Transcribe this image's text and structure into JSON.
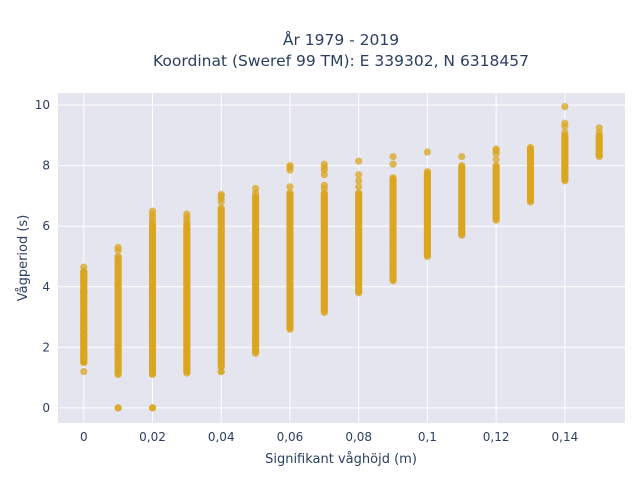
{
  "chart_data": {
    "type": "scatter",
    "title": [
      "År 1979 - 2019",
      "Koordinat (Sweref 99 TM): E 339302, N 6318457"
    ],
    "xlabel": "Signifikant våghöjd (m)",
    "ylabel": "Vågperiod (s)",
    "xlim": [
      -0.0075,
      0.1575
    ],
    "ylim": [
      -0.5,
      10.4
    ],
    "xticks": [
      0,
      0.02,
      0.04,
      0.06,
      0.08,
      0.1,
      0.12,
      0.14
    ],
    "xtick_labels": [
      "0",
      "0,02",
      "0,04",
      "0,06",
      "0,08",
      "0,1",
      "0,12",
      "0,14"
    ],
    "yticks": [
      0,
      2,
      4,
      6,
      8,
      10
    ],
    "ytick_labels": [
      "0",
      "2",
      "4",
      "6",
      "8",
      "10"
    ],
    "grid": true,
    "background_color": "#e5e5ef",
    "marker_color": "#d9a520",
    "columns": [
      {
        "x": 0,
        "range": [
          1.5,
          4.5
        ],
        "outliers": [
          1.2,
          1.5,
          1.6,
          1.8,
          2.1,
          2.4,
          2.6,
          2.8,
          3.0,
          3.5,
          3.8,
          3.85,
          4.2,
          4.4,
          4.5,
          4.65
        ]
      },
      {
        "x": 0.01,
        "range": [
          1.1,
          5.0
        ],
        "outliers": [
          0,
          0,
          5.2,
          5.3
        ]
      },
      {
        "x": 0.02,
        "range": [
          1.1,
          6.1
        ],
        "outliers": [
          0,
          0,
          6.2,
          6.3,
          6.4,
          6.5
        ]
      },
      {
        "x": 0.03,
        "range": [
          1.15,
          6.1
        ],
        "outliers": [
          6.2,
          6.3,
          6.4
        ]
      },
      {
        "x": 0.04,
        "range": [
          1.35,
          6.6
        ],
        "outliers": [
          1.2,
          1.2,
          6.8,
          6.9,
          7.0,
          7.05
        ]
      },
      {
        "x": 0.05,
        "range": [
          1.8,
          7.0
        ],
        "outliers": [
          7.1,
          7.25
        ]
      },
      {
        "x": 0.06,
        "range": [
          2.6,
          7.1
        ],
        "outliers": [
          7.3,
          7.85,
          7.95,
          8.0
        ]
      },
      {
        "x": 0.07,
        "range": [
          3.2,
          7.1
        ],
        "outliers": [
          3.15,
          7.25,
          7.35,
          7.7,
          7.85,
          7.95,
          8.05
        ]
      },
      {
        "x": 0.08,
        "range": [
          3.8,
          7.1
        ],
        "outliers": [
          7.3,
          7.5,
          7.7,
          8.15
        ]
      },
      {
        "x": 0.09,
        "range": [
          4.2,
          7.6
        ],
        "outliers": [
          8.05,
          8.3
        ]
      },
      {
        "x": 0.1,
        "range": [
          5.0,
          7.8
        ],
        "outliers": [
          8.45
        ]
      },
      {
        "x": 0.11,
        "range": [
          5.7,
          8.0
        ],
        "outliers": [
          8.3
        ]
      },
      {
        "x": 0.12,
        "range": [
          6.2,
          8.0
        ],
        "outliers": [
          8.2,
          8.4,
          8.5,
          8.55
        ]
      },
      {
        "x": 0.13,
        "range": [
          6.8,
          8.6
        ],
        "outliers": []
      },
      {
        "x": 0.14,
        "range": [
          7.5,
          9.0
        ],
        "outliers": [
          9.1,
          9.3,
          9.4,
          9.95
        ]
      },
      {
        "x": 0.15,
        "range": [
          8.3,
          9.0
        ],
        "outliers": [
          9.1,
          9.25
        ]
      }
    ]
  }
}
